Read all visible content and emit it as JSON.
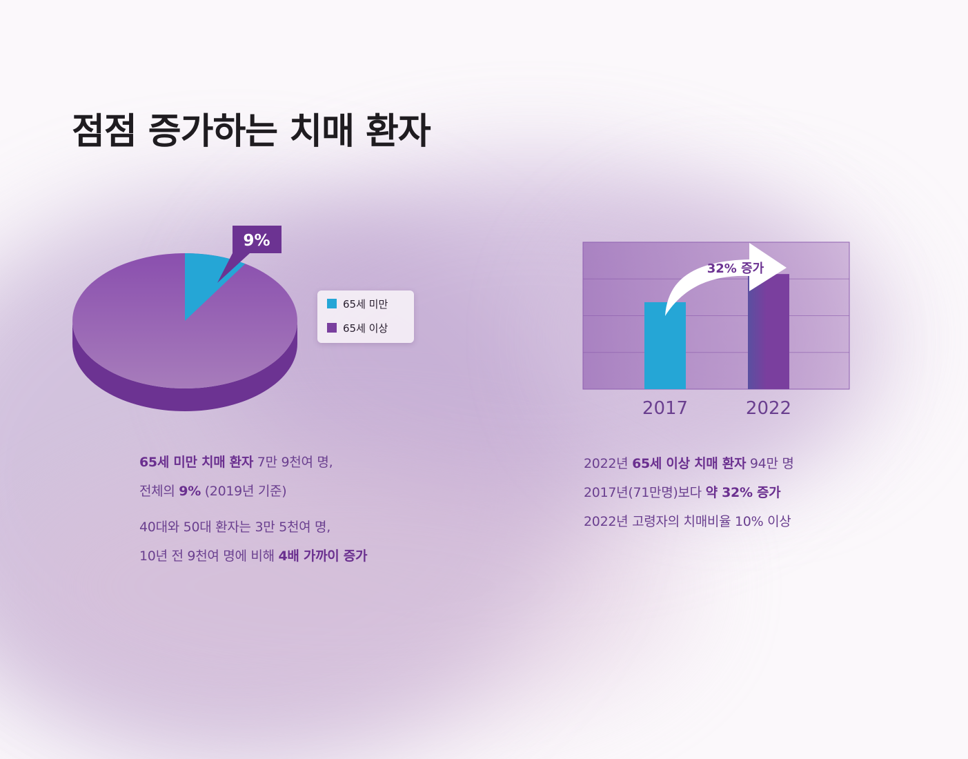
{
  "page": {
    "title": "점점 증가하는 치매 환자"
  },
  "colors": {
    "blue": "#25a6d6",
    "purple": "#7a3f9e",
    "purple_dark": "#6c3392",
    "text": "#6a3f8f"
  },
  "pie": {
    "callout_label": "9%",
    "legend": [
      {
        "label": "65세 미만",
        "color": "#25a6d6"
      },
      {
        "label": "65세 이상",
        "color": "#7a3f9e"
      }
    ]
  },
  "chart_data": [
    {
      "type": "pie",
      "slices": [
        {
          "label": "65세 미만",
          "value": 9,
          "color": "#25a6d6"
        },
        {
          "label": "65세 이상",
          "value": 91,
          "color": "#7a3f9e"
        }
      ],
      "annotations": [
        "9%"
      ],
      "legend_position": "right"
    },
    {
      "type": "bar",
      "categories": [
        "2017",
        "2022"
      ],
      "values": [
        71,
        94
      ],
      "ylim": [
        0,
        120
      ],
      "grid": true,
      "colors": [
        "#25a6d6",
        "#7a3f9e"
      ],
      "annotations": [
        "32% 증가"
      ]
    }
  ],
  "bar": {
    "arrow_label": "32% 증가"
  },
  "left_text": {
    "line1_bold": "65세 미만 치매 환자",
    "line1_rest": " 7만 9천여 명,",
    "line2_pre": "전체의 ",
    "line2_bold": "9%",
    "line2_rest": " (2019년 기준)",
    "line3": "40대와 50대 환자는 3만 5천여 명,",
    "line4_pre": "10년 전 9천여 명에 비해 ",
    "line4_bold": "4배 가까이 증가"
  },
  "right_text": {
    "line1_pre": "2022년 ",
    "line1_bold": "65세 이상 치매 환자",
    "line1_rest": " 94만 명",
    "line2_pre": "2017년(71만명)보다 ",
    "line2_bold": "약 32% 증가",
    "line3": "2022년 고령자의 치매비율 10% 이상"
  }
}
